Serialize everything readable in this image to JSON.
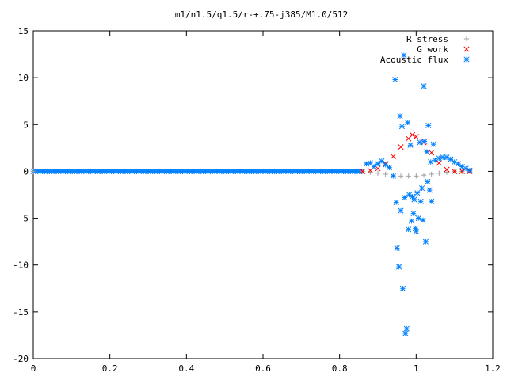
{
  "chart_data": {
    "type": "scatter",
    "title": "m1/n1.5/q1.5/r-+.75-j385/M1.0/512",
    "xlabel": "",
    "ylabel": "",
    "xlim": [
      0,
      1.2
    ],
    "ylim": [
      -20,
      15
    ],
    "x_ticks": [
      "0",
      "0.2",
      "0.4",
      "0.6",
      "0.8",
      "1",
      "1.2"
    ],
    "y_ticks": [
      "15",
      "10",
      "5",
      "0",
      "-5",
      "-10",
      "-15",
      "-20"
    ],
    "grid": false,
    "legend_position": "top-right",
    "series": [
      {
        "name": "R stress",
        "marker": "+",
        "color": "#a0a0a0",
        "points": [
          [
            0.0,
            0
          ],
          [
            0.86,
            0.0
          ],
          [
            0.88,
            -0.1
          ],
          [
            0.9,
            -0.2
          ],
          [
            0.92,
            -0.3
          ],
          [
            0.94,
            -0.4
          ],
          [
            0.96,
            -0.5
          ],
          [
            0.98,
            -0.5
          ],
          [
            1.0,
            -0.5
          ],
          [
            1.02,
            -0.4
          ],
          [
            1.04,
            -0.3
          ],
          [
            1.06,
            -0.2
          ],
          [
            1.08,
            -0.1
          ],
          [
            1.1,
            0.0
          ],
          [
            1.12,
            0.0
          ],
          [
            1.14,
            0.0
          ]
        ]
      },
      {
        "name": "G work",
        "marker": "x",
        "color": "#ff0000",
        "points": [
          [
            0.86,
            0.0
          ],
          [
            0.88,
            0.1
          ],
          [
            0.9,
            0.3
          ],
          [
            0.92,
            0.8
          ],
          [
            0.94,
            1.6
          ],
          [
            0.96,
            2.6
          ],
          [
            0.98,
            3.5
          ],
          [
            0.99,
            3.9
          ],
          [
            1.0,
            3.7
          ],
          [
            1.02,
            3.1
          ],
          [
            1.04,
            2.0
          ],
          [
            1.06,
            0.9
          ],
          [
            1.08,
            0.2
          ],
          [
            1.1,
            0.0
          ],
          [
            1.12,
            0.0
          ],
          [
            1.14,
            0.0
          ]
        ]
      },
      {
        "name": "Acoustic flux",
        "marker": "*",
        "color": "#0080ff",
        "points": [
          [
            0.87,
            0.8
          ],
          [
            0.88,
            0.9
          ],
          [
            0.89,
            0.5
          ],
          [
            0.9,
            0.8
          ],
          [
            0.91,
            1.1
          ],
          [
            0.92,
            0.7
          ],
          [
            0.93,
            0.4
          ],
          [
            0.94,
            -0.5
          ],
          [
            0.945,
            9.8
          ],
          [
            0.948,
            -3.3
          ],
          [
            0.95,
            -8.2
          ],
          [
            0.955,
            -10.2
          ],
          [
            0.958,
            5.9
          ],
          [
            0.96,
            -4.2
          ],
          [
            0.963,
            4.8
          ],
          [
            0.965,
            -12.5
          ],
          [
            0.968,
            12.4
          ],
          [
            0.97,
            -2.8
          ],
          [
            0.972,
            -17.3
          ],
          [
            0.975,
            -16.8
          ],
          [
            0.978,
            5.2
          ],
          [
            0.98,
            -6.2
          ],
          [
            0.982,
            -2.5
          ],
          [
            0.985,
            2.8
          ],
          [
            0.988,
            -5.3
          ],
          [
            0.99,
            -2.7
          ],
          [
            0.993,
            -4.5
          ],
          [
            0.995,
            -3.0
          ],
          [
            0.998,
            -6.1
          ],
          [
            1.0,
            -6.4
          ],
          [
            1.003,
            -2.3
          ],
          [
            1.006,
            -5.0
          ],
          [
            1.01,
            3.1
          ],
          [
            1.012,
            -3.2
          ],
          [
            1.015,
            -1.8
          ],
          [
            1.018,
            -5.2
          ],
          [
            1.02,
            9.1
          ],
          [
            1.022,
            3.2
          ],
          [
            1.025,
            -7.5
          ],
          [
            1.028,
            2.1
          ],
          [
            1.03,
            -1.1
          ],
          [
            1.032,
            4.9
          ],
          [
            1.035,
            -2.0
          ],
          [
            1.038,
            1.0
          ],
          [
            1.04,
            -3.2
          ],
          [
            1.045,
            2.9
          ],
          [
            1.05,
            1.2
          ],
          [
            1.06,
            1.4
          ],
          [
            1.07,
            1.5
          ],
          [
            1.08,
            1.5
          ],
          [
            1.09,
            1.3
          ],
          [
            1.1,
            1.0
          ],
          [
            1.11,
            0.8
          ],
          [
            1.12,
            0.5
          ],
          [
            1.13,
            0.3
          ],
          [
            1.14,
            0.1
          ]
        ]
      }
    ]
  }
}
